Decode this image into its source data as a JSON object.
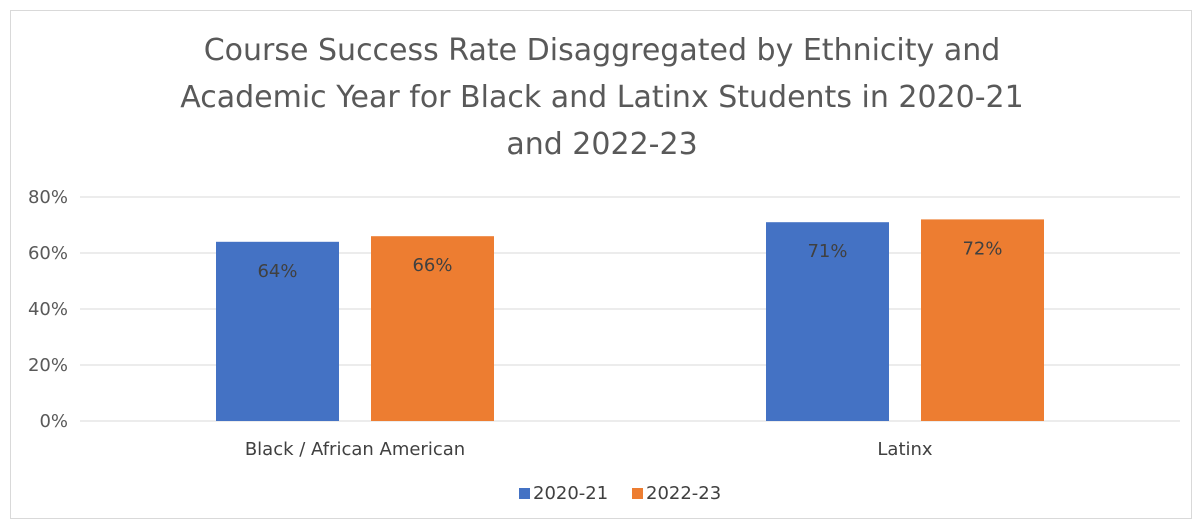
{
  "chart_data": {
    "type": "bar",
    "title_lines": [
      "Course Success Rate Disaggregated by Ethnicity and",
      "Academic Year for Black and Latinx Students in 2020-21",
      "and 2022-23"
    ],
    "categories": [
      "Black / African American",
      "Latinx"
    ],
    "series": [
      {
        "name": "2020-21",
        "values": [
          0.64,
          0.71
        ],
        "labels": [
          "64%",
          "71%"
        ],
        "color": "#4472C4"
      },
      {
        "name": "2022-23",
        "values": [
          0.66,
          0.72
        ],
        "labels": [
          "66%",
          "72%"
        ],
        "color": "#ED7D31"
      }
    ],
    "ylim": [
      0,
      0.8
    ],
    "yticks": [
      0,
      0.2,
      0.4,
      0.6,
      0.8
    ],
    "ytick_labels": [
      "0%",
      "20%",
      "40%",
      "60%",
      "80%"
    ],
    "grid": true,
    "legend_position": "bottom"
  }
}
